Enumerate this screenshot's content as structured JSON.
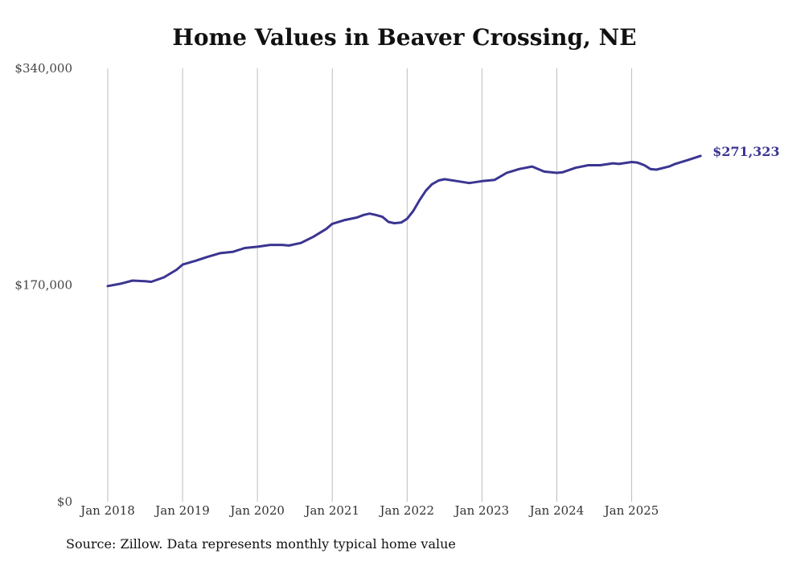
{
  "chart_data": {
    "type": "line",
    "title": "Home Values in Beaver Crossing, NE",
    "xlabel": "",
    "ylabel": "",
    "x_ticks": [
      {
        "label": "Jan 2018",
        "x": 2018.0
      },
      {
        "label": "Jan 2019",
        "x": 2019.0
      },
      {
        "label": "Jan 2020",
        "x": 2020.0
      },
      {
        "label": "Jan 2021",
        "x": 2021.0
      },
      {
        "label": "Jan 2022",
        "x": 2022.0
      },
      {
        "label": "Jan 2023",
        "x": 2023.0
      },
      {
        "label": "Jan 2024",
        "x": 2024.0
      },
      {
        "label": "Jan 2025",
        "x": 2025.0
      }
    ],
    "y_ticks": [
      {
        "label": "$0",
        "value": 0
      },
      {
        "label": "$170,000",
        "value": 170000
      },
      {
        "label": "$340,000",
        "value": 340000
      }
    ],
    "xlim": [
      2018.0,
      2025.95
    ],
    "ylim": [
      0,
      340000
    ],
    "grid": "vertical",
    "end_label": "$271,323",
    "series": [
      {
        "name": "Typical home value",
        "color": "#3b3591",
        "x": [
          2018.0,
          2018.17,
          2018.33,
          2018.5,
          2018.58,
          2018.75,
          2018.92,
          2019.0,
          2019.17,
          2019.33,
          2019.5,
          2019.67,
          2019.83,
          2020.0,
          2020.17,
          2020.33,
          2020.42,
          2020.58,
          2020.75,
          2020.92,
          2021.0,
          2021.17,
          2021.33,
          2021.42,
          2021.5,
          2021.58,
          2021.67,
          2021.75,
          2021.83,
          2021.92,
          2022.0,
          2022.08,
          2022.17,
          2022.25,
          2022.33,
          2022.42,
          2022.5,
          2022.67,
          2022.83,
          2023.0,
          2023.17,
          2023.33,
          2023.5,
          2023.67,
          2023.83,
          2024.0,
          2024.08,
          2024.25,
          2024.42,
          2024.58,
          2024.75,
          2024.83,
          2025.0,
          2025.08,
          2025.17,
          2025.25,
          2025.33,
          2025.5,
          2025.58,
          2025.75,
          2025.92
        ],
        "values": [
          169200,
          171000,
          173500,
          173000,
          172500,
          176000,
          182000,
          186000,
          189000,
          192000,
          195000,
          196000,
          199000,
          200000,
          201500,
          201500,
          201000,
          203000,
          208000,
          214000,
          218000,
          221000,
          223000,
          225000,
          226000,
          225000,
          223500,
          219500,
          218500,
          219000,
          222000,
          228000,
          237000,
          244000,
          249000,
          252000,
          253000,
          251500,
          250000,
          251500,
          252500,
          258000,
          261000,
          263000,
          259000,
          258000,
          258500,
          262000,
          264000,
          264000,
          265500,
          265000,
          266500,
          266000,
          264000,
          261000,
          260500,
          263000,
          265000,
          268000,
          271323
        ]
      }
    ]
  },
  "footer": {
    "source": "Source: Zillow. Data represents monthly typical home value"
  }
}
